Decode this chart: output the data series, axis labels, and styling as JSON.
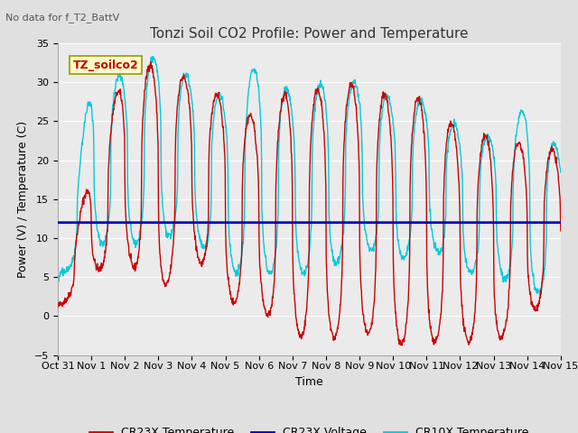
{
  "title": "Tonzi Soil CO2 Profile: Power and Temperature",
  "top_left_note": "No data for f_T2_BattV",
  "annotation_box": "TZ_soilco2",
  "xlabel": "Time",
  "ylabel": "Power (V) / Temperature (C)",
  "ylim": [
    -5,
    35
  ],
  "yticks": [
    -5,
    0,
    5,
    10,
    15,
    20,
    25,
    30,
    35
  ],
  "x_tick_labels": [
    "Oct 31",
    "Nov 1",
    "Nov 2",
    "Nov 3",
    "Nov 4",
    "Nov 5",
    "Nov 6",
    "Nov 7",
    "Nov 8",
    "Nov 9",
    "Nov 10",
    "Nov 11",
    "Nov 12",
    "Nov 13",
    "Nov 14",
    "Nov 15"
  ],
  "voltage_level": 12.0,
  "bg_color": "#e0e0e0",
  "plot_bg_color": "#ebebeb",
  "cr23x_temp_color": "#cc0000",
  "cr23x_volt_color": "#0000bb",
  "cr10x_temp_color": "#00ccdd",
  "grid_color": "#ffffff",
  "title_fontsize": 11,
  "label_fontsize": 9,
  "tick_fontsize": 8,
  "legend_fontsize": 9,
  "num_days": 15,
  "pts_per_day": 96,
  "cr10x_phase_lead": 0.08,
  "cr23x_peaks": [
    1.5,
    19.0,
    31.5,
    32.5,
    30.0,
    28.0,
    25.0,
    29.5,
    29.0,
    30.0,
    28.0,
    28.0,
    23.5,
    23.0,
    22.0,
    21.0
  ],
  "cr23x_troughs": [
    1.0,
    5.5,
    7.5,
    2.5,
    8.5,
    2.0,
    1.0,
    -2.5,
    -3.0,
    -2.0,
    -3.5,
    -3.5,
    -3.0,
    -4.0,
    1.0,
    0.5
  ],
  "cr10x_peaks": [
    4.0,
    30.0,
    31.0,
    33.5,
    30.5,
    28.0,
    32.5,
    28.5,
    30.0,
    30.0,
    28.0,
    27.5,
    24.0,
    23.0,
    27.0,
    21.0
  ],
  "cr10x_troughs": [
    4.5,
    9.5,
    9.0,
    10.0,
    10.5,
    5.5,
    5.5,
    5.5,
    5.5,
    9.5,
    6.5,
    9.5,
    5.5,
    5.5,
    3.0,
    3.0
  ]
}
